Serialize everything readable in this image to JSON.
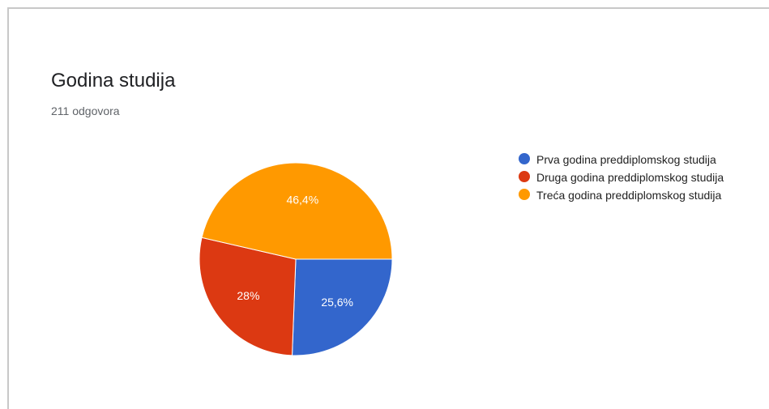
{
  "card": {
    "title": "Godina studija",
    "subtitle": "211 odgovora"
  },
  "chart_data": {
    "type": "pie",
    "title": "Godina studija",
    "subtitle": "211 odgovora",
    "categories": [
      "Prva godina preddiplomskog studija",
      "Druga godina preddiplomskog studija",
      "Treća godina preddiplomskog studija"
    ],
    "values": [
      25.6,
      28,
      46.4
    ],
    "data_labels": [
      "25,6%",
      "28%",
      "46,4%"
    ],
    "colors": [
      "#3366cc",
      "#dc3912",
      "#ff9900"
    ],
    "legend_position": "right"
  }
}
